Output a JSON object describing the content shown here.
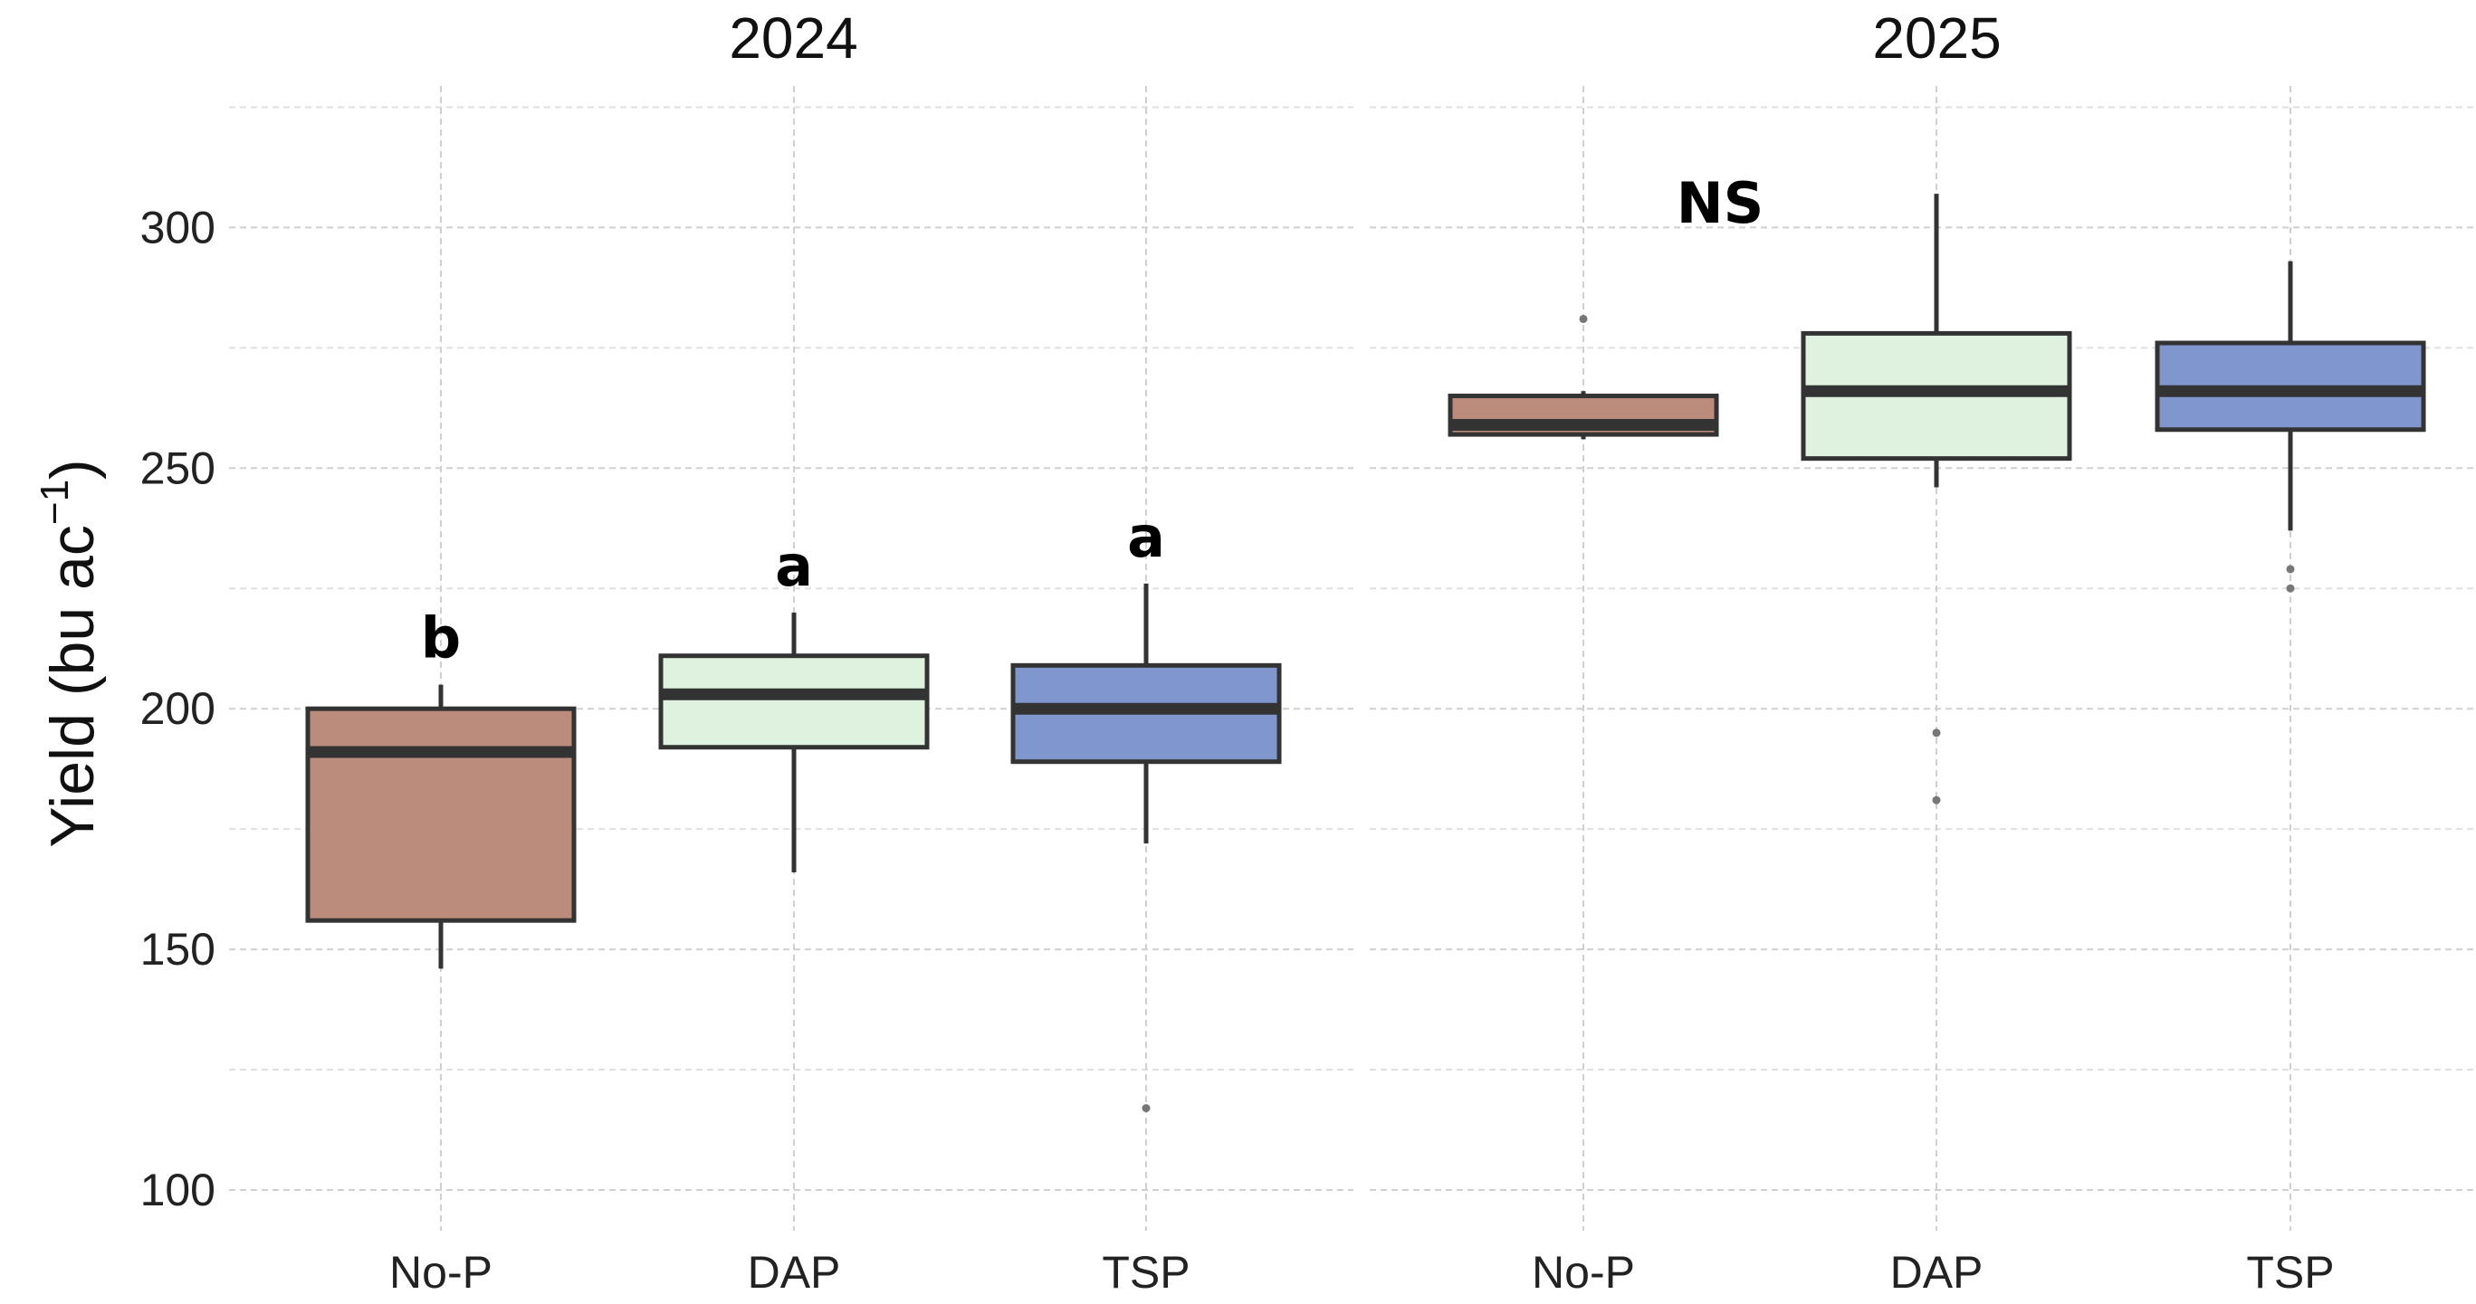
{
  "chart_data": {
    "type": "boxplot",
    "ylabel": "Yield (bu ac",
    "ylabel_superscript": "−1",
    "ylabel_close": ")",
    "ylim": [
      80,
      335
    ],
    "y_ticks": [
      "100",
      "150",
      "200",
      "250",
      "300"
    ],
    "y_tick_values": [
      100,
      150,
      200,
      250,
      300
    ],
    "grid": true,
    "colors": {
      "No-P": "#bb8b7c",
      "DAP": "#dff2df",
      "TSP": "#7f97cd"
    },
    "facets": [
      {
        "title": "2024",
        "significance_group": null,
        "groups": [
          {
            "label": "No-P",
            "min": 146,
            "q1": 156,
            "median": 191,
            "q3": 200,
            "max": 205,
            "outliers": [],
            "letter": "b"
          },
          {
            "label": "DAP",
            "min": 166,
            "q1": 192,
            "median": 203,
            "q3": 211,
            "max": 220,
            "outliers": [],
            "letter": "a"
          },
          {
            "label": "TSP",
            "min": 172,
            "q1": 189,
            "median": 200,
            "q3": 209,
            "max": 226,
            "outliers": [
              117
            ],
            "letter": "a"
          }
        ]
      },
      {
        "title": "2025",
        "significance_group": "NS",
        "groups": [
          {
            "label": "No-P",
            "min": 256,
            "q1": 257,
            "median": 259,
            "q3": 265,
            "max": 266,
            "outliers": [
              281
            ],
            "letter": ""
          },
          {
            "label": "DAP",
            "min": 246,
            "q1": 252,
            "median": 266,
            "q3": 278,
            "max": 307,
            "outliers": [
              195,
              181
            ],
            "letter": ""
          },
          {
            "label": "TSP",
            "min": 237,
            "q1": 258,
            "median": 266,
            "q3": 276,
            "max": 293,
            "outliers": [
              229,
              225
            ],
            "letter": ""
          }
        ]
      }
    ]
  }
}
